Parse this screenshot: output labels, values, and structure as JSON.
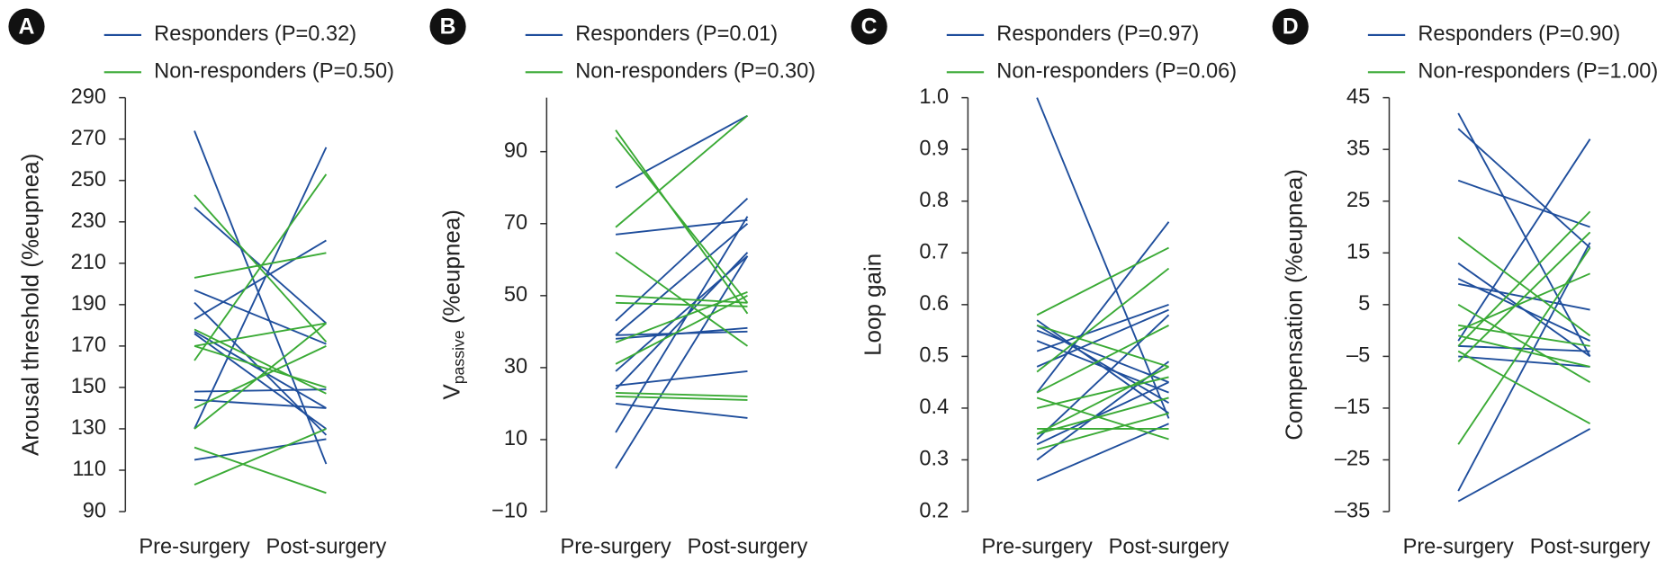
{
  "chart_data": [
    {
      "type": "line",
      "panel_label": "A",
      "ylabel": "Arousal threshold (%eupnea)",
      "categories": [
        "Pre-surgery",
        "Post-surgery"
      ],
      "ylim": [
        90,
        290
      ],
      "yticks": [
        90,
        110,
        130,
        150,
        170,
        190,
        210,
        230,
        250,
        270,
        290
      ],
      "series": [
        {
          "name": "Responders (P=0.32)",
          "color": "#1f4e9c",
          "values": [
            [
              274,
              113
            ],
            [
              237,
              181
            ],
            [
              197,
              171
            ],
            [
              191,
              127
            ],
            [
              183,
              221
            ],
            [
              177,
              140
            ],
            [
              176,
              130
            ],
            [
              148,
              149
            ],
            [
              144,
              140
            ],
            [
              115,
              125
            ],
            [
              130,
              266
            ]
          ]
        },
        {
          "name": "Non-responders (P=0.50)",
          "color": "#3aaa35",
          "values": [
            [
              243,
              172
            ],
            [
              203,
              215
            ],
            [
              170,
              181
            ],
            [
              163,
              253
            ],
            [
              121,
              99
            ],
            [
              103,
              130
            ],
            [
              140,
              170
            ],
            [
              170,
              150
            ],
            [
              130,
              181
            ],
            [
              178,
              147
            ]
          ]
        }
      ]
    },
    {
      "type": "line",
      "panel_label": "B",
      "ylabel": {
        "main": "V",
        "sub": "passive",
        "unit": " (%eupnea)"
      },
      "categories": [
        "Pre-surgery",
        "Post-surgery"
      ],
      "ylim": [
        -10,
        105
      ],
      "yticks": [
        {
          "value": -10,
          "label": "−10"
        },
        10,
        30,
        50,
        70,
        90
      ],
      "series": [
        {
          "name": "Responders (P=0.01)",
          "color": "#1f4e9c",
          "values": [
            [
              80,
              100
            ],
            [
              67,
              71
            ],
            [
              39,
              70
            ],
            [
              38,
              41
            ],
            [
              43,
              77
            ],
            [
              29,
              61
            ],
            [
              25,
              29
            ],
            [
              24,
              62
            ],
            [
              20,
              16
            ],
            [
              12,
              72
            ],
            [
              2,
              61
            ],
            [
              39,
              40
            ]
          ]
        },
        {
          "name": "Non-responders (P=0.30)",
          "color": "#3aaa35",
          "values": [
            [
              96,
              45
            ],
            [
              94,
              48
            ],
            [
              69,
              100
            ],
            [
              62,
              36
            ],
            [
              50,
              48
            ],
            [
              48,
              47
            ],
            [
              37,
              51
            ],
            [
              22,
              21
            ],
            [
              23,
              22
            ],
            [
              31,
              50
            ]
          ]
        }
      ]
    },
    {
      "type": "line",
      "panel_label": "C",
      "ylabel": "Loop gain",
      "categories": [
        "Pre-surgery",
        "Post-surgery"
      ],
      "ylim": [
        0.2,
        1.0
      ],
      "yticks": [
        0.2,
        0.3,
        0.4,
        0.5,
        0.6,
        0.7,
        0.8,
        0.9,
        {
          "value": 1,
          "label": "1.0"
        }
      ],
      "series": [
        {
          "name": "Responders (P=0.97)",
          "color": "#1f4e9c",
          "values": [
            [
              1.0,
              0.38
            ],
            [
              0.57,
              0.39
            ],
            [
              0.56,
              0.41
            ],
            [
              0.53,
              0.43
            ],
            [
              0.51,
              0.6
            ],
            [
              0.48,
              0.59
            ],
            [
              0.43,
              0.76
            ],
            [
              0.34,
              0.58
            ],
            [
              0.33,
              0.45
            ],
            [
              0.3,
              0.49
            ],
            [
              0.26,
              0.37
            ],
            [
              0.55,
              0.45
            ]
          ]
        },
        {
          "name": "Non-responders (P=0.06)",
          "color": "#3aaa35",
          "values": [
            [
              0.58,
              0.71
            ],
            [
              0.56,
              0.48
            ],
            [
              0.47,
              0.67
            ],
            [
              0.43,
              0.56
            ],
            [
              0.42,
              0.34
            ],
            [
              0.35,
              0.42
            ],
            [
              0.35,
              0.48
            ],
            [
              0.32,
              0.39
            ],
            [
              0.36,
              0.36
            ],
            [
              0.4,
              0.46
            ]
          ]
        }
      ]
    },
    {
      "type": "line",
      "panel_label": "D",
      "ylabel": "Compensation (%eupnea)",
      "categories": [
        "Pre-surgery",
        "Post-surgery"
      ],
      "ylim": [
        -35,
        45
      ],
      "yticks": [
        {
          "value": -35,
          "label": "–35"
        },
        {
          "value": -25,
          "label": "–25"
        },
        {
          "value": -15,
          "label": "–15"
        },
        {
          "value": -5,
          "label": "–5"
        },
        5,
        15,
        25,
        35,
        45
      ],
      "series": [
        {
          "name": "Responders (P=0.90)",
          "color": "#1f4e9c",
          "values": [
            [
              42,
              -5
            ],
            [
              39,
              16
            ],
            [
              29,
              20
            ],
            [
              13,
              -5
            ],
            [
              9,
              4
            ],
            [
              10,
              -2
            ],
            [
              -3,
              -4
            ],
            [
              -5,
              -7
            ],
            [
              -31,
              17
            ],
            [
              -33,
              -19
            ],
            [
              -2,
              37
            ]
          ]
        },
        {
          "name": "Non-responders (P=1.00)",
          "color": "#3aaa35",
          "values": [
            [
              18,
              -1
            ],
            [
              5,
              -10
            ],
            [
              1,
              -3
            ],
            [
              -1,
              -7
            ],
            [
              -3,
              23
            ],
            [
              -22,
              16
            ],
            [
              -4,
              -18
            ],
            [
              0,
              11
            ],
            [
              -6,
              19
            ]
          ]
        }
      ]
    }
  ]
}
